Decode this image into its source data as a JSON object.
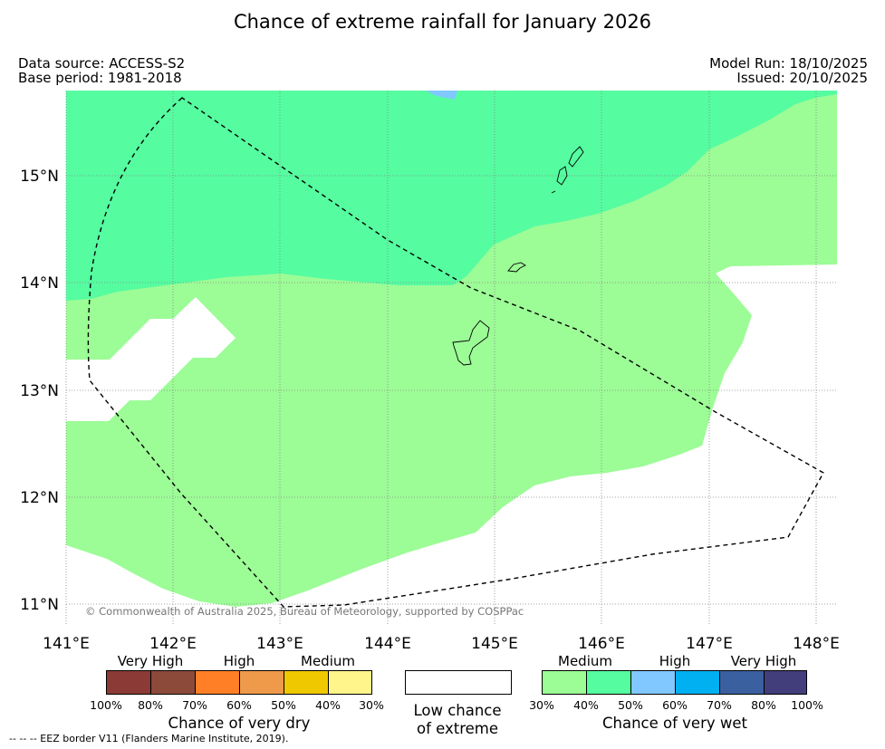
{
  "title": "Chance of extreme rainfall for January 2026",
  "data_source": "Data source: ACCESS-S2",
  "base_period": "Base period: 1981-2018",
  "model_run": "Model Run: 18/10/2025",
  "issued": "Issued: 20/10/2025",
  "copyright": "© Commonwealth of Australia 2025, Bureau of Meteorology, supported by COSPPac",
  "lon_labels": [
    "141°E",
    "142°E",
    "143°E",
    "144°E",
    "145°E",
    "146°E",
    "147°E",
    "148°E"
  ],
  "lat_labels": [
    "15°N",
    "14°N",
    "13°N",
    "12°N",
    "11°N"
  ],
  "dry_legend": {
    "title": "Chance of very dry",
    "categories": [
      "Very High",
      "High",
      "Medium"
    ],
    "ticks": [
      "100%",
      "80%",
      "70%",
      "60%",
      "50%",
      "40%",
      "30%"
    ],
    "colors": [
      "#8b3a35",
      "#8b4a3a",
      "#ff7f27",
      "#ee9a4a",
      "#f0c800",
      "#fff58a"
    ]
  },
  "low_legend": {
    "title_line1": "Low chance",
    "title_line2": "of extreme",
    "color": "#ffffff"
  },
  "wet_legend": {
    "title": "Chance of very wet",
    "categories": [
      "Medium",
      "High",
      "Very High"
    ],
    "ticks": [
      "30%",
      "40%",
      "50%",
      "60%",
      "70%",
      "80%",
      "100%"
    ],
    "colors": [
      "#9cfc96",
      "#55fca0",
      "#80c8ff",
      "#00b0f0",
      "#3a60a0",
      "#423e7c"
    ]
  },
  "eez_note": "--  --  -- EEZ border V11 (Flanders Marine Institute, 2019)."
}
